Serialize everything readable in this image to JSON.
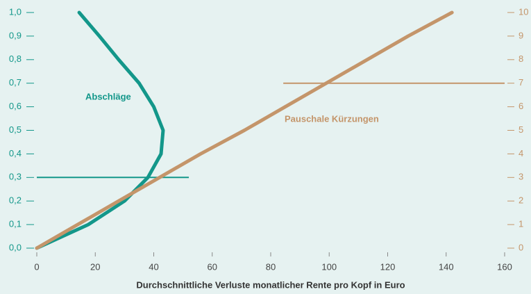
{
  "chart_data": {
    "type": "line",
    "xlabel": "Durchschnittliche Verluste monatlicher Rente pro Kopf in Euro",
    "xlim": [
      0,
      160
    ],
    "xticks": [
      0,
      20,
      40,
      60,
      80,
      100,
      120,
      140,
      160
    ],
    "ylim": [
      0,
      1
    ],
    "yticks": [
      {
        "value": 0,
        "label": "0,0"
      },
      {
        "value": 0.1,
        "label": "0,1"
      },
      {
        "value": 0.2,
        "label": "0,2"
      },
      {
        "value": 0.3,
        "label": "0,3"
      },
      {
        "value": 0.4,
        "label": "0,4"
      },
      {
        "value": 0.5,
        "label": "0,5"
      },
      {
        "value": 0.6,
        "label": "0,6"
      },
      {
        "value": 0.7,
        "label": "0,7"
      },
      {
        "value": 0.8,
        "label": "0,8"
      },
      {
        "value": 0.9,
        "label": "0,9"
      },
      {
        "value": 1,
        "label": "1,0"
      }
    ],
    "y2lim": [
      0,
      10
    ],
    "y2ticks": [
      0,
      1,
      2,
      3,
      4,
      5,
      6,
      7,
      8,
      9,
      10
    ],
    "y_color": "#13978a",
    "y2_color": "#c4956a",
    "series": [
      {
        "name": "Abschläge",
        "color": "#13978a",
        "axis": "y",
        "x": [
          0,
          17.6,
          30,
          38,
          42.5,
          43.2,
          40,
          35,
          28,
          21.4,
          14.5
        ],
        "values": [
          0,
          0.1,
          0.2,
          0.3,
          0.4,
          0.5,
          0.6,
          0.7,
          0.8,
          0.9,
          1
        ]
      },
      {
        "name": "Pauschale Kürzungen",
        "color": "#c4956a",
        "axis": "y2",
        "x": [
          0,
          14,
          28,
          42,
          56,
          71,
          85,
          99,
          113,
          127,
          142
        ],
        "values": [
          0,
          1,
          2,
          3,
          4,
          5,
          6,
          7,
          8,
          9,
          10
        ]
      }
    ],
    "reference_lines": [
      {
        "axis": "y",
        "value": 0.3,
        "x": [
          0,
          52
        ],
        "color": "#13978a"
      },
      {
        "axis": "y2",
        "value": 7,
        "x": [
          84.3,
          160
        ],
        "color": "#c4956a"
      }
    ]
  }
}
